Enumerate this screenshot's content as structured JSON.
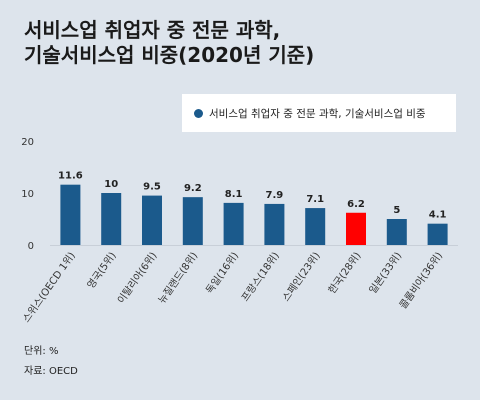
{
  "title_line1": "서비스업 취업자 중 전문 과학,",
  "title_line2": "기술서비스업 비중(2020년 기준)",
  "unit_note": "단위: %",
  "source_note": "자료: OECD",
  "colors": {
    "bar": "#1b5a8c",
    "highlight": "#ff0000"
  },
  "chart_data": {
    "type": "bar",
    "categories": [
      "스위스(OECD 1위)",
      "영국(5위)",
      "이탈리아(6위)",
      "뉴질랜드(8위)",
      "독일(16위)",
      "프랑스(18위)",
      "스페인(23위)",
      "한국(28위)",
      "일본(33위)",
      "콜롬비아(36위)"
    ],
    "series": [
      {
        "name": "서비스업 취업자 중 전문 과학, 기술서비스업 비중",
        "values": [
          11.6,
          10,
          9.5,
          9.2,
          8.1,
          7.9,
          7.1,
          6.2,
          5,
          4.1
        ]
      }
    ],
    "value_labels": [
      "11.6",
      "10",
      "9.5",
      "9.2",
      "8.1",
      "7.9",
      "7.1",
      "6.2",
      "5",
      "4.1"
    ],
    "highlight_index": 7,
    "y_ticks": [
      0,
      10,
      20
    ],
    "ylim": [
      0,
      20
    ],
    "grid": false,
    "legend_position": "top-right"
  }
}
